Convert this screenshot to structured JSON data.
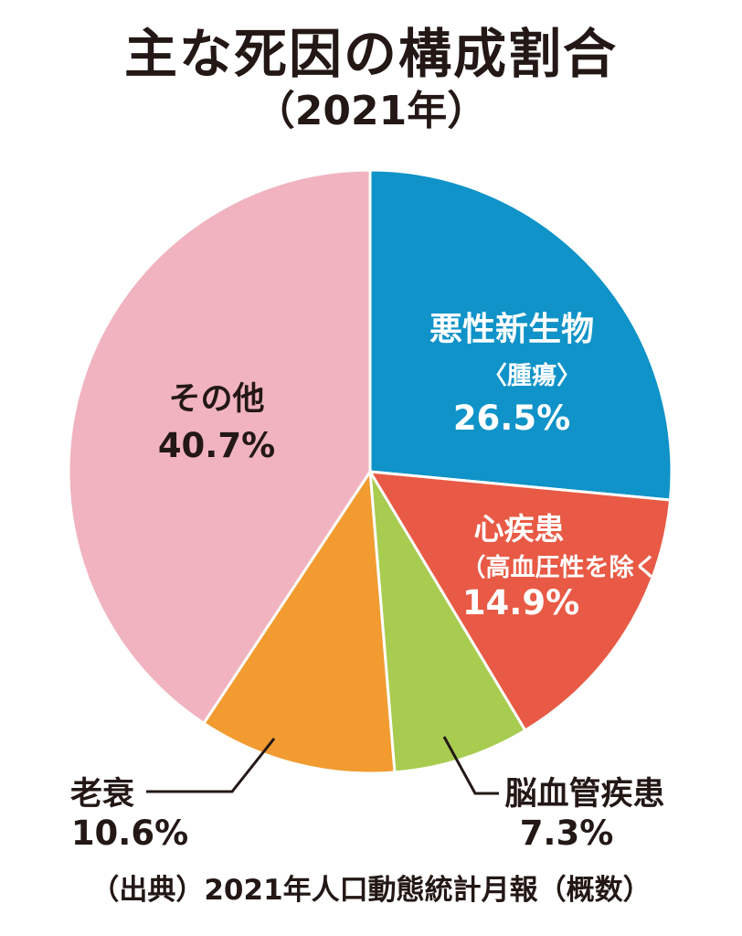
{
  "chart_data": {
    "type": "pie",
    "title": "主な死因の構成割合",
    "subtitle": "（2021年）",
    "slices": [
      {
        "name": "悪性新生物",
        "name2": "〈腫瘍〉",
        "value": 26.5,
        "value_label": "26.5%",
        "color": "#0f93c8"
      },
      {
        "name": "心疾患",
        "name2": "（高血圧性を除く）",
        "value": 14.9,
        "value_label": "14.9%",
        "color": "#e85a45"
      },
      {
        "name": "脳血管疾患",
        "name2": "",
        "value": 7.3,
        "value_label": "7.3%",
        "color": "#a8cc50"
      },
      {
        "name": "老衰",
        "name2": "",
        "value": 10.6,
        "value_label": "10.6%",
        "color": "#f19b30"
      },
      {
        "name": "その他",
        "name2": "",
        "value": 40.7,
        "value_label": "40.7%",
        "color": "#f0b3bf"
      }
    ],
    "start_angle": "12 o'clock",
    "direction": "clockwise",
    "legend": "none",
    "source": "（出典）2021年人口動態統計月報（概数）"
  }
}
